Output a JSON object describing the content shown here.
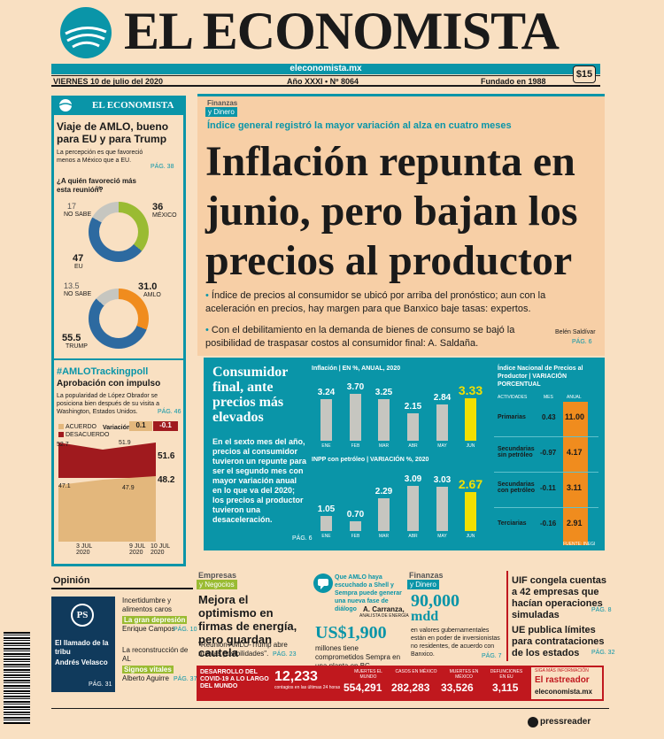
{
  "masthead": {
    "title": "EL ECONOMISTA",
    "url": "eleconomista.mx",
    "date": "VIERNES 10 de julio del 2020",
    "issue": "Año XXXI • Nº 8064",
    "founded": "Fundado en 1988",
    "price": "$15"
  },
  "left": {
    "brand": "EL ECONOMISTA",
    "story_title": "Viaje de AMLO, bueno para EU y para Trump",
    "story_bullet": "La percepción es que favoreció menos a México que a EU.",
    "story_pag": "PÁG. 38",
    "question": "¿A quién favoreció más esta reunión?",
    "question_unit": "%",
    "donut1": {
      "mexico": "36",
      "mexico_label": "MÉXICO",
      "nosabe": "17",
      "nosabe_label": "NO SABE",
      "eu": "47",
      "eu_label": "EU"
    },
    "donut2": {
      "amlo": "31.0",
      "amlo_label": "AMLO",
      "nosabe": "13.5",
      "nosabe_label": "NO SABE",
      "trump": "55.5",
      "trump_label": "TRUMP"
    },
    "poll_tag": "#AMLOTrackingpoll",
    "poll_title": "Aprobación con impulso",
    "poll_text": "La popularidad de López Obrador se posiciona bien después de su visita a Washington, Estados Unidos.",
    "poll_pag": "PÁG. 46",
    "legend_acuerdo": "ACUERDO",
    "legend_desacuerdo": "DESACUERDO",
    "variacion_label": "Variación:",
    "var_acuerdo": "0.1",
    "var_desacuerdo": "-0.1",
    "vals": {
      "a": "52.7",
      "b": "51.9",
      "c": "51.6",
      "d": "47.1",
      "e": "47.9",
      "f": "48.2"
    },
    "xlabels": [
      "3 JUL 2020",
      "9 JUL 2020",
      "10 JUL 2020"
    ]
  },
  "main": {
    "section": "Finanzas",
    "section2": "y Dinero",
    "kicker": "Índice general registró la mayor variación al alza en cuatro meses",
    "headline": "Inflación repunta en junio, pero bajan los precios al productor",
    "bullet1": "Índice de precios al consumidor se ubicó por arriba del pronóstico; aun con la aceleración en precios, hay margen para que Banxico baje tasas: expertos.",
    "bullet2": "Con el debilitamiento en la demanda de bienes de consumo se bajó la posibilidad de traspasar costos al consumidor final: A. Saldaña.",
    "byline": "Belén Saldívar",
    "byline_pag": "PÁG. 6"
  },
  "chart_box": {
    "title": "Consumidor final, ante precios más elevados",
    "text": "En el sexto mes del año, precios al consumidor tuvieron un repunte para ser el segundo mes con mayor variación anual en lo que va del 2020; los precios al productor tuvieron una desaceleración.",
    "pag": "PÁG. 6",
    "source": "FUENTE: INEGI"
  },
  "chart_data": [
    {
      "type": "bar",
      "title": "Inflación | EN %, ANUAL, 2020",
      "categories": [
        "ENE",
        "FEB",
        "MAR",
        "ABR",
        "MAY",
        "JUN"
      ],
      "values": [
        3.24,
        3.7,
        3.25,
        2.15,
        2.84,
        3.33
      ],
      "labels": [
        "3.24",
        "3.70",
        "3.25",
        "2.15",
        "2.84",
        "3.33"
      ]
    },
    {
      "type": "bar",
      "title": "INPP con petróleo | VARIACIÓN %, 2020",
      "categories": [
        "ENE",
        "FEB",
        "MAR",
        "ABR",
        "MAY",
        "JUN"
      ],
      "values": [
        1.05,
        0.7,
        2.29,
        3.09,
        3.03,
        2.67
      ],
      "labels": [
        "1.05",
        "0.70",
        "2.29",
        "3.09",
        "3.03",
        "2.67"
      ]
    },
    {
      "type": "table",
      "title": "Índice Nacional de Precios al Productor | VARIACIÓN PORCENTUAL",
      "columns": [
        "ACTIVIDADES",
        "MES",
        "ANUAL"
      ],
      "rows": [
        [
          "Primarias",
          "0.43",
          "11.00"
        ],
        [
          "Secundarias sin petróleo",
          "-0.97",
          "4.17"
        ],
        [
          "Secundarias con petróleo",
          "-0.11",
          "3.11"
        ],
        [
          "Terciarias",
          "-0.16",
          "2.91"
        ]
      ]
    }
  ],
  "bottom": {
    "opinion": "Opinión",
    "op_logo": "PS",
    "op_title": "El llamado de la tribu",
    "op_author": "Andrés Velasco",
    "op_pag": "PÁG. 31",
    "op1_title": "Incertidumbre y alimentos caros",
    "op1_author": "Enrique Campos",
    "op1_pag": "PÁG. 10",
    "op2_title": "La gran depresión",
    "op3_title": "La reconstrucción de AL",
    "op3_author": "Alberto Aguirre",
    "op3_pag": "PÁG. 37",
    "op4_title": "Signos vitales",
    "empresas": "Empresas",
    "negocios": "y Negocios",
    "emp_title": "Mejora el optimismo en firmas de energía, pero guardan cautela",
    "emp_bullet": "\"Reunión AMLO-Trump abre nuevas posibilidades\".",
    "emp_pag": "PÁG. 23",
    "amlo_quote": "Que AMLO haya escuchado a Shell y Sempra puede generar una nueva fase de diálogo",
    "quote_author": "A. Carranza,",
    "quote_role": "ANALISTA DE ENERGÍA",
    "us_big": "US$1,900",
    "us_text": "millones tiene comprometidos Sempra en una planta en BC.",
    "fin": "Finanzas",
    "dinero": "y Dinero",
    "fin_big": "90,000",
    "fin_unit": "mdd",
    "fin_text": "en valores gubernamentales están en poder de inversionistas no residentes, de acuerdo con Banxico.",
    "fin_pag": "PÁG. 7",
    "uif_title": "UIF congela cuentas a 42 empresas que hacían operaciones simuladas",
    "uif_pag": "PÁG. 8",
    "ue_title": "UE publica límites para contrataciones de los estados",
    "ue_pag": "PÁG. 32"
  },
  "covid": {
    "label": "DESARROLLO DEL COVID-19 A LO LARGO DEL MUNDO",
    "new": "12,233",
    "new_text": "contagios en las últimas 24 horas",
    "c1_label": "MUERTES EL MUNDO",
    "c1": "554,291",
    "c2_label": "CASOS EN MÉXICO",
    "c2": "282,283",
    "c3_label": "MUERTES EN MÉXICO",
    "c3": "33,526",
    "c4_label": "DEFUNCIONES EN EU",
    "c4": "3,115",
    "promo1": "SIGA MÁS INFORMACIÓN",
    "promo2": "El rastreador",
    "promo3": "eleconomista.mx"
  },
  "footer": {
    "pressreader": "pressreader"
  }
}
